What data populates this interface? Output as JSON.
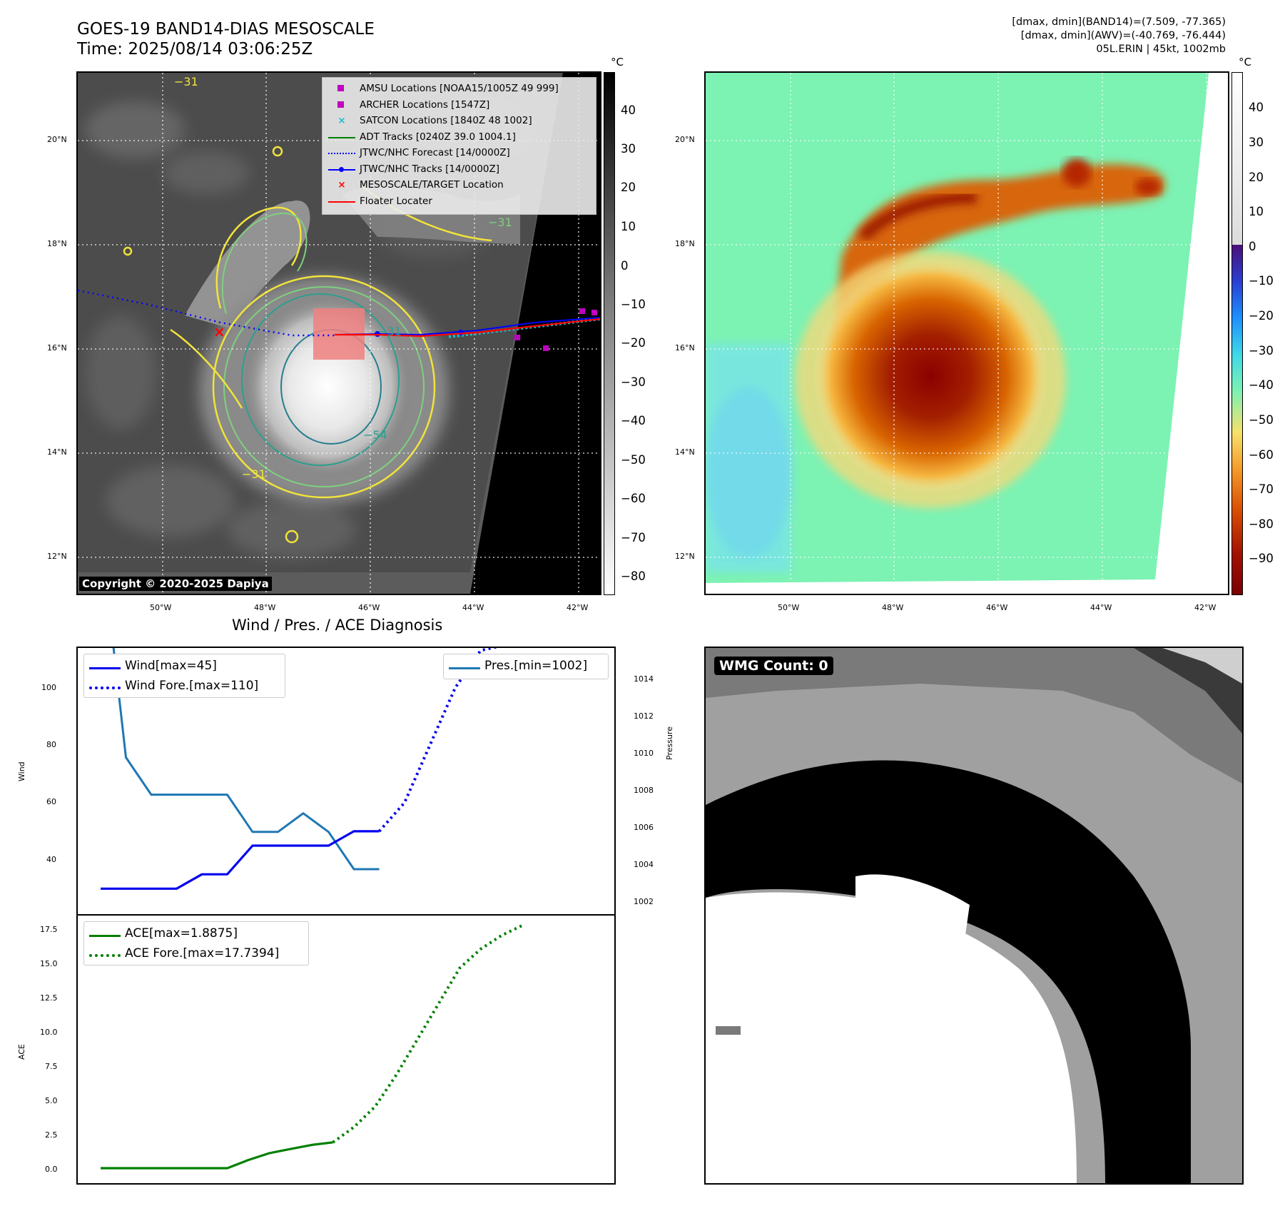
{
  "header": {
    "title_line1": "GOES-19 BAND14-DIAS MESOSCALE",
    "title_line2": "Time: 2025/08/14 03:06:25Z",
    "info_line1": "[dmax, dmin](BAND14)=(7.509, -77.365)",
    "info_line2": "[dmax, dmin](AWV)=(-40.769, -76.444)",
    "info_line3": "05L.ERIN | 45kt, 1002mb"
  },
  "map_left": {
    "colorbar_unit": "°C",
    "colorbar_ticks": [
      "40",
      "30",
      "20",
      "10",
      "0",
      "−10",
      "−20",
      "−30",
      "−40",
      "−50",
      "−60",
      "−70",
      "−80"
    ],
    "lat_labels": [
      "20°N",
      "18°N",
      "16°N",
      "14°N",
      "12°N"
    ],
    "lon_labels": [
      "50°W",
      "48°W",
      "46°W",
      "44°W",
      "42°W"
    ],
    "contour_labels": [
      "−31",
      "−54",
      "−31",
      "−31",
      "−31"
    ],
    "copyright": "Copyright © 2020-2025 Dapiya",
    "legend": [
      {
        "label": "AMSU Locations [NOAA15/1005Z 49 999]",
        "symbol": "square",
        "color": "#c000c0"
      },
      {
        "label": "ARCHER Locations [1547Z]",
        "symbol": "square",
        "color": "#c000c0"
      },
      {
        "label": "SATCON Locations [1840Z 48 1002]",
        "symbol": "x",
        "color": "#17becf"
      },
      {
        "label": "ADT Tracks [0240Z 39.0 1004.1]",
        "symbol": "line",
        "color": "#008000"
      },
      {
        "label": "JTWC/NHC Forecast [14/0000Z]",
        "symbol": "dotted",
        "color": "#0000ff"
      },
      {
        "label": "JTWC/NHC Tracks [14/0000Z]",
        "symbol": "line-dot",
        "color": "#0000ff"
      },
      {
        "label": "MESOSCALE/TARGET Location",
        "symbol": "x",
        "color": "#ff0000"
      },
      {
        "label": "Floater Locater",
        "symbol": "line",
        "color": "#ff0000"
      }
    ]
  },
  "map_right": {
    "colorbar_unit": "°C",
    "colorbar_ticks": [
      "40",
      "30",
      "20",
      "10",
      "0",
      "−10",
      "−20",
      "−30",
      "−40",
      "−50",
      "−60",
      "−70",
      "−80",
      "−90"
    ],
    "lat_labels": [
      "20°N",
      "18°N",
      "16°N",
      "14°N",
      "12°N"
    ],
    "lon_labels": [
      "50°W",
      "48°W",
      "46°W",
      "44°W",
      "42°W"
    ]
  },
  "diagnosis": {
    "title": "Wind / Pres. / ACE Diagnosis",
    "wind_ylabel": "Wind",
    "pres_ylabel": "Pressure",
    "ace_ylabel": "ACE",
    "wind_ticks": [
      "100",
      "80",
      "60",
      "40"
    ],
    "pres_ticks": [
      "1014",
      "1012",
      "1010",
      "1008",
      "1006",
      "1004",
      "1002"
    ],
    "ace_ticks": [
      "17.5",
      "15.0",
      "12.5",
      "10.0",
      "7.5",
      "5.0",
      "2.5",
      "0.0"
    ],
    "legend_wind": "Wind[max=45]",
    "legend_wind_fore": "Wind Fore.[max=110]",
    "legend_pres": "Pres.[min=1002]",
    "legend_ace": "ACE[max=1.8875]",
    "legend_ace_fore": "ACE Fore.[max=17.7394]"
  },
  "wmg": {
    "label": "WMG Count: 0"
  },
  "chart_data": [
    {
      "type": "line",
      "title": "Wind / Pres. / ACE Diagnosis",
      "series": [
        {
          "name": "Wind[max=45]",
          "x": [
            0,
            1,
            2,
            3,
            4,
            5,
            6,
            7,
            8,
            9,
            10,
            11
          ],
          "y": [
            25,
            25,
            25,
            25,
            30,
            30,
            40,
            40,
            40,
            40,
            45,
            45
          ]
        },
        {
          "name": "Wind Fore.[max=110]",
          "x": [
            11,
            12,
            13,
            14,
            15,
            16,
            17,
            18
          ],
          "y": [
            45,
            55,
            75,
            95,
            108,
            110,
            110,
            110
          ]
        },
        {
          "name": "Pres.[min=1002]",
          "x": [
            0,
            0.5,
            1,
            2,
            3,
            4,
            5,
            6,
            7,
            8,
            9,
            10,
            11
          ],
          "y": [
            1014,
            1014,
            1008,
            1006,
            1006,
            1006,
            1006,
            1004,
            1004,
            1005,
            1004,
            1002,
            1002
          ]
        }
      ],
      "ylabel": "Wind",
      "ylabel_right": "Pressure"
    },
    {
      "type": "line",
      "series": [
        {
          "name": "ACE[max=1.8875]",
          "x": [
            0,
            1,
            2,
            3,
            4,
            5,
            6,
            7,
            8,
            9,
            10,
            11
          ],
          "y": [
            0,
            0,
            0,
            0,
            0,
            0,
            0,
            0.6,
            1.1,
            1.4,
            1.7,
            1.8875
          ]
        },
        {
          "name": "ACE Fore.[max=17.7394]",
          "x": [
            11,
            12,
            13,
            14,
            15,
            16,
            17,
            18,
            19,
            20
          ],
          "y": [
            1.8875,
            3.0,
            4.5,
            6.8,
            9.4,
            12.0,
            14.6,
            16.0,
            17.0,
            17.7394
          ]
        }
      ],
      "ylabel": "ACE"
    }
  ]
}
